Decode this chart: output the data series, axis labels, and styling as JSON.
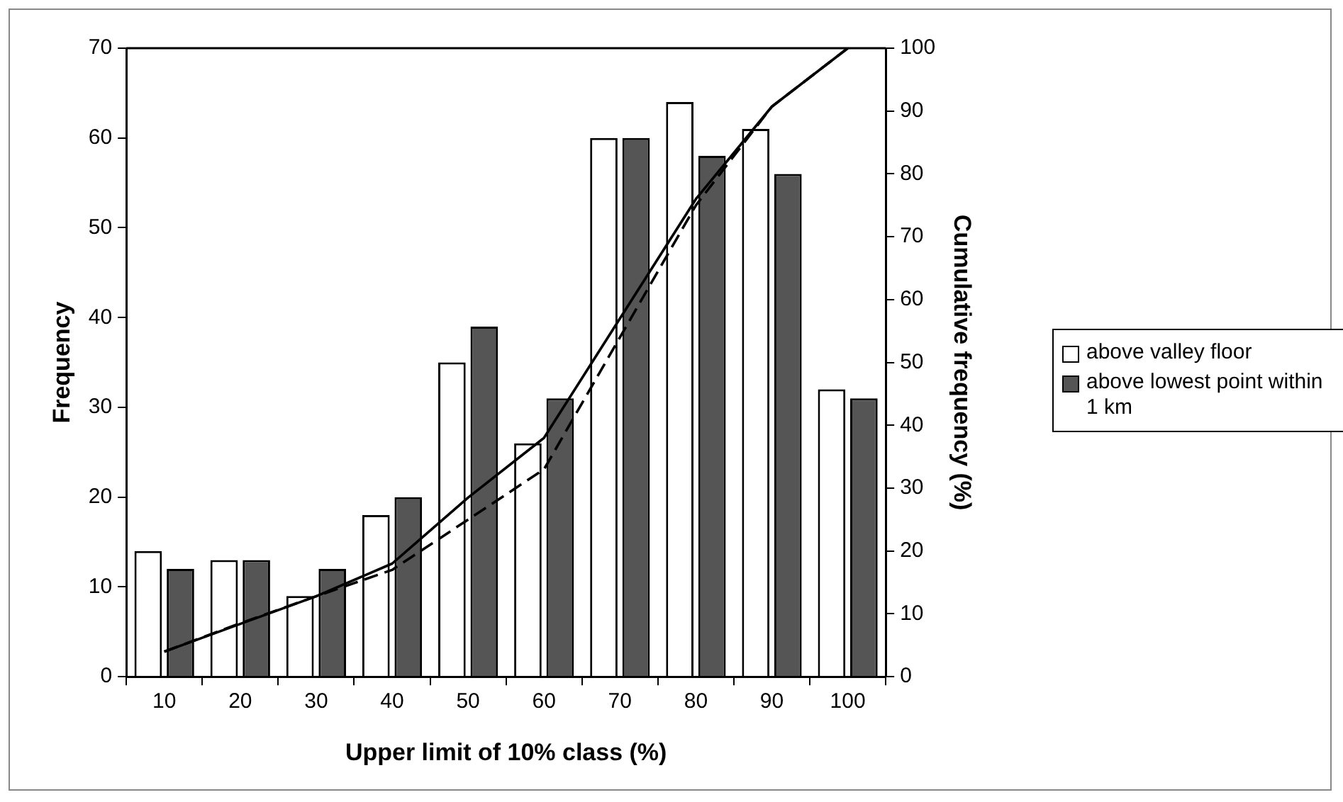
{
  "chart_data": {
    "type": "bar",
    "xlabel": "Upper limit of 10% class (%)",
    "ylabel": "Frequency",
    "y2label": "Cumulative frequency (%)",
    "categories": [
      "10",
      "20",
      "30",
      "40",
      "50",
      "60",
      "70",
      "80",
      "90",
      "100"
    ],
    "series": [
      {
        "name": "above valley floor",
        "color": "#ffffff",
        "values": [
          14,
          13,
          9,
          18,
          35,
          26,
          60,
          64,
          61,
          32
        ]
      },
      {
        "name": "above lowest point within 1 km",
        "color": "#555555",
        "values": [
          12,
          13,
          12,
          20,
          39,
          31,
          60,
          58,
          56,
          31
        ]
      },
      {
        "type": "line",
        "axis": "y2",
        "color": "#000000",
        "line_style": "solid",
        "values": [
          4,
          8.4,
          12.8,
          18,
          28.5,
          38,
          57,
          76,
          90.7,
          100
        ]
      },
      {
        "type": "line",
        "axis": "y2",
        "color": "#000000",
        "line_style": "dashed",
        "values": [
          4,
          8.5,
          12.8,
          17,
          25,
          33,
          54,
          75,
          90.7,
          100
        ]
      }
    ],
    "ylim": [
      0,
      70
    ],
    "yticks": [
      0,
      10,
      20,
      30,
      40,
      50,
      60,
      70
    ],
    "y2lim": [
      0,
      100
    ],
    "y2ticks": [
      0,
      10,
      20,
      30,
      40,
      50,
      60,
      70,
      80,
      90,
      100
    ],
    "grid": false,
    "legend": "right",
    "marker": "none"
  }
}
